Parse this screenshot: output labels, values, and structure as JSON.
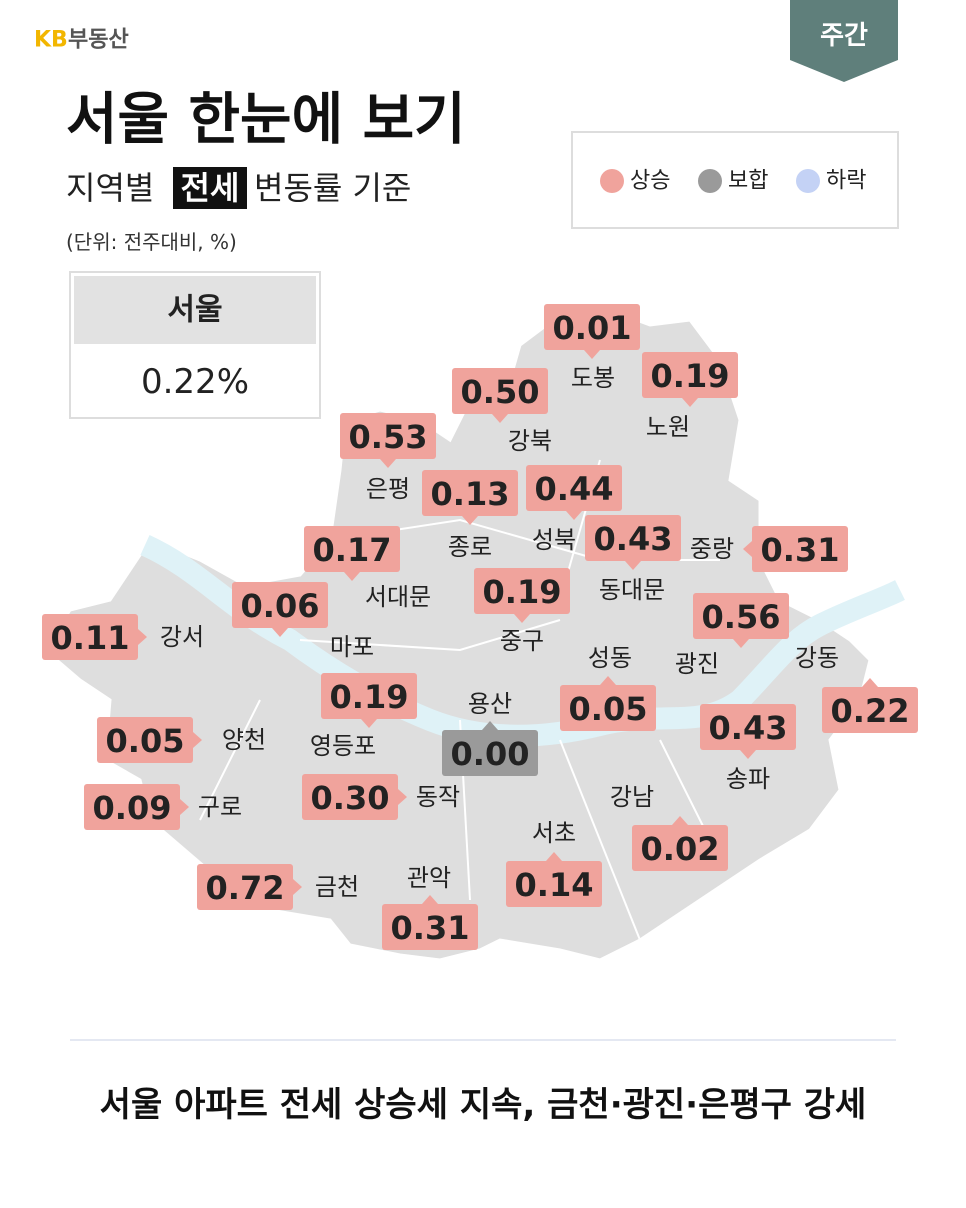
{
  "header": {
    "brand": {
      "kb": "KB",
      "name": "부동산"
    },
    "tab": "주간",
    "title": "서울 한눈에 보기",
    "subtitle": {
      "before": "지역별",
      "highlight": "전세",
      "after": "변동률 기준"
    },
    "unit": "(단위: 전주대비, %)"
  },
  "legend": [
    {
      "label": "상승",
      "color": "#f0a39c"
    },
    {
      "label": "보합",
      "color": "#9a9a9a"
    },
    {
      "label": "하락",
      "color": "#c4d2f5"
    }
  ],
  "summary": {
    "region": "서울",
    "value": "0.22%"
  },
  "districts": [
    {
      "name": "도봉",
      "value": "0.01",
      "color": "#f0a39c"
    },
    {
      "name": "노원",
      "value": "0.19",
      "color": "#f0a39c"
    },
    {
      "name": "강북",
      "value": "0.50",
      "color": "#f0a39c"
    },
    {
      "name": "은평",
      "value": "0.53",
      "color": "#f0a39c"
    },
    {
      "name": "종로",
      "value": "0.13",
      "color": "#f0a39c"
    },
    {
      "name": "성북",
      "value": "0.44",
      "color": "#f0a39c"
    },
    {
      "name": "동대문",
      "value": "0.43",
      "color": "#f0a39c"
    },
    {
      "name": "중랑",
      "value": "0.31",
      "color": "#f0a39c"
    },
    {
      "name": "서대문",
      "value": "0.17",
      "color": "#f0a39c"
    },
    {
      "name": "중구",
      "value": "0.19",
      "color": "#f0a39c"
    },
    {
      "name": "마포",
      "value": "0.06",
      "color": "#f0a39c"
    },
    {
      "name": "강서",
      "value": "0.11",
      "color": "#f0a39c"
    },
    {
      "name": "광진",
      "value": "0.56",
      "color": "#f0a39c"
    },
    {
      "name": "성동",
      "value": "0.05",
      "color": "#f0a39c"
    },
    {
      "name": "강동",
      "value": "0.22",
      "color": "#f0a39c"
    },
    {
      "name": "용산",
      "value": "0.00",
      "color": "#9a9a9a"
    },
    {
      "name": "영등포",
      "value": "0.19",
      "color": "#f0a39c"
    },
    {
      "name": "양천",
      "value": "0.05",
      "color": "#f0a39c"
    },
    {
      "name": "송파",
      "value": "0.43",
      "color": "#f0a39c"
    },
    {
      "name": "동작",
      "value": "0.30",
      "color": "#f0a39c"
    },
    {
      "name": "구로",
      "value": "0.09",
      "color": "#f0a39c"
    },
    {
      "name": "강남",
      "value": "0.02",
      "color": "#f0a39c"
    },
    {
      "name": "서초",
      "value": "0.14",
      "color": "#f0a39c"
    },
    {
      "name": "금천",
      "value": "0.72",
      "color": "#f0a39c"
    },
    {
      "name": "관악",
      "value": "0.31",
      "color": "#f0a39c"
    }
  ],
  "footer": {
    "headline": "서울 아파트 전세 상승세 지속, 금천·광진·은평구 강세"
  }
}
